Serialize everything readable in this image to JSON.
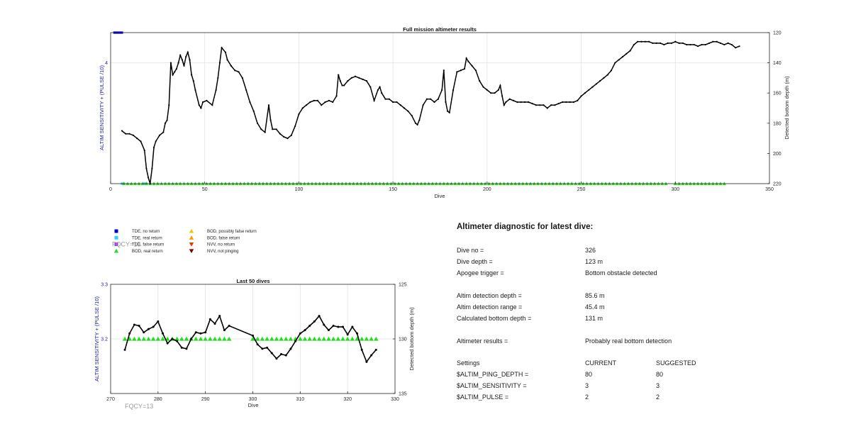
{
  "chart_data": [
    {
      "type": "line",
      "title": "Full mission altimeter results",
      "xlabel": "Dive",
      "ylabel_left": "ALTIM SENSITIVITY + (PULSE /10)",
      "ylabel_right": "Detected bottom depth (m)",
      "xlim": [
        0,
        350
      ],
      "x_ticks": [
        "0",
        "50",
        "100",
        "150",
        "200",
        "250",
        "300",
        "350"
      ],
      "left_ylim": [
        0,
        5
      ],
      "left_ticks": [
        "4"
      ],
      "right_ylim": [
        120,
        220
      ],
      "right_reversed": true,
      "right_ticks": [
        "120",
        "140",
        "160",
        "180",
        "200",
        "220"
      ],
      "grid": true,
      "depth_series": {
        "name": "Detected bottom depth",
        "points": [
          [
            6,
            185
          ],
          [
            8,
            187
          ],
          [
            10,
            187
          ],
          [
            12,
            188
          ],
          [
            14,
            190
          ],
          [
            16,
            192
          ],
          [
            18,
            198
          ],
          [
            19,
            210
          ],
          [
            20,
            216
          ],
          [
            21,
            220
          ],
          [
            22,
            210
          ],
          [
            23,
            196
          ],
          [
            24,
            192
          ],
          [
            26,
            188
          ],
          [
            28,
            186
          ],
          [
            29,
            180
          ],
          [
            30,
            178
          ],
          [
            31,
            168
          ],
          [
            32,
            140
          ],
          [
            33,
            148
          ],
          [
            34,
            146
          ],
          [
            35,
            144
          ],
          [
            36,
            140
          ],
          [
            37,
            135
          ],
          [
            38,
            138
          ],
          [
            39,
            142
          ],
          [
            40,
            136
          ],
          [
            41,
            133
          ],
          [
            42,
            138
          ],
          [
            43,
            148
          ],
          [
            44,
            152
          ],
          [
            45,
            158
          ],
          [
            47,
            168
          ],
          [
            48,
            170
          ],
          [
            49,
            166
          ],
          [
            51,
            165
          ],
          [
            54,
            168
          ],
          [
            56,
            158
          ],
          [
            57,
            150
          ],
          [
            58,
            140
          ],
          [
            59,
            130
          ],
          [
            61,
            133
          ],
          [
            62,
            138
          ],
          [
            64,
            142
          ],
          [
            66,
            145
          ],
          [
            68,
            146
          ],
          [
            70,
            150
          ],
          [
            72,
            158
          ],
          [
            74,
            166
          ],
          [
            76,
            172
          ],
          [
            78,
            180
          ],
          [
            80,
            184
          ],
          [
            82,
            186
          ],
          [
            84,
            168
          ],
          [
            85,
            178
          ],
          [
            86,
            184
          ],
          [
            88,
            184
          ],
          [
            90,
            187
          ],
          [
            92,
            189
          ],
          [
            94,
            190
          ],
          [
            96,
            188
          ],
          [
            98,
            182
          ],
          [
            100,
            174
          ],
          [
            102,
            170
          ],
          [
            104,
            168
          ],
          [
            106,
            166
          ],
          [
            108,
            165
          ],
          [
            110,
            165
          ],
          [
            112,
            168
          ],
          [
            114,
            166
          ],
          [
            116,
            165
          ],
          [
            118,
            166
          ],
          [
            120,
            162
          ],
          [
            121,
            148
          ],
          [
            122,
            152
          ],
          [
            123,
            155
          ],
          [
            124,
            155
          ],
          [
            126,
            152
          ],
          [
            128,
            150
          ],
          [
            130,
            149
          ],
          [
            132,
            150
          ],
          [
            134,
            151
          ],
          [
            136,
            152
          ],
          [
            138,
            156
          ],
          [
            140,
            165
          ],
          [
            142,
            158
          ],
          [
            143,
            156
          ],
          [
            144,
            160
          ],
          [
            146,
            164
          ],
          [
            148,
            164
          ],
          [
            150,
            166
          ],
          [
            152,
            166
          ],
          [
            154,
            168
          ],
          [
            156,
            170
          ],
          [
            158,
            172
          ],
          [
            160,
            175
          ],
          [
            162,
            180
          ],
          [
            163,
            181
          ],
          [
            164,
            178
          ],
          [
            166,
            168
          ],
          [
            168,
            164
          ],
          [
            170,
            164
          ],
          [
            172,
            166
          ],
          [
            174,
            164
          ],
          [
            176,
            158
          ],
          [
            177,
            145
          ],
          [
            178,
            166
          ],
          [
            179,
            172
          ],
          [
            180,
            173
          ],
          [
            182,
            158
          ],
          [
            184,
            146
          ],
          [
            186,
            145
          ],
          [
            188,
            144
          ],
          [
            189,
            137
          ],
          [
            190,
            139
          ],
          [
            192,
            142
          ],
          [
            194,
            145
          ],
          [
            196,
            152
          ],
          [
            198,
            156
          ],
          [
            200,
            158
          ],
          [
            202,
            160
          ],
          [
            204,
            160
          ],
          [
            206,
            158
          ],
          [
            207,
            155
          ],
          [
            208,
            162
          ],
          [
            209,
            168
          ],
          [
            210,
            166
          ],
          [
            212,
            164
          ],
          [
            214,
            165
          ],
          [
            216,
            166
          ],
          [
            218,
            166
          ],
          [
            220,
            166
          ],
          [
            222,
            166
          ],
          [
            224,
            167
          ],
          [
            226,
            168
          ],
          [
            228,
            168
          ],
          [
            230,
            168
          ],
          [
            232,
            170
          ],
          [
            234,
            168
          ],
          [
            236,
            168
          ],
          [
            238,
            167
          ],
          [
            240,
            166
          ],
          [
            242,
            166
          ],
          [
            244,
            166
          ],
          [
            246,
            166
          ],
          [
            248,
            165
          ],
          [
            250,
            162
          ],
          [
            252,
            160
          ],
          [
            254,
            158
          ],
          [
            256,
            156
          ],
          [
            258,
            154
          ],
          [
            260,
            152
          ],
          [
            262,
            150
          ],
          [
            264,
            148
          ],
          [
            266,
            145
          ],
          [
            268,
            140
          ],
          [
            270,
            138
          ],
          [
            272,
            136
          ],
          [
            274,
            134
          ],
          [
            276,
            132
          ],
          [
            278,
            128
          ],
          [
            280,
            126
          ],
          [
            282,
            126
          ],
          [
            284,
            126
          ],
          [
            286,
            126
          ],
          [
            288,
            127
          ],
          [
            290,
            127
          ],
          [
            292,
            127
          ],
          [
            294,
            128
          ],
          [
            296,
            127
          ],
          [
            298,
            127
          ],
          [
            300,
            126
          ],
          [
            302,
            127
          ],
          [
            304,
            127
          ],
          [
            306,
            128
          ],
          [
            308,
            128
          ],
          [
            310,
            128
          ],
          [
            312,
            129
          ],
          [
            314,
            128
          ],
          [
            316,
            128
          ],
          [
            318,
            127
          ],
          [
            320,
            126
          ],
          [
            322,
            126
          ],
          [
            324,
            127
          ],
          [
            326,
            128
          ],
          [
            328,
            127
          ],
          [
            330,
            128
          ],
          [
            332,
            130
          ],
          [
            334,
            129
          ]
        ]
      },
      "marker_sets": [
        {
          "name": "TDE, no return",
          "color": "#0000cc",
          "shape": "square",
          "x": [
            2,
            3,
            4,
            5,
            6
          ],
          "level": 5
        },
        {
          "name": "TDE, real return",
          "color": "#33ccff",
          "shape": "square",
          "x": [
            6,
            7,
            18,
            19
          ],
          "level": 0
        },
        {
          "name": "BOD, real return",
          "color": "#22dd22",
          "shape": "triangle",
          "level": 0,
          "x_ranges": [
            [
              7,
              296
            ],
            [
              300,
              326
            ]
          ]
        }
      ]
    },
    {
      "type": "line",
      "title": "Last 50 dives",
      "xlabel": "Dive",
      "ylabel_left": "ALTIM SENSITIVITY + (PULSE /10)",
      "ylabel_right": "Detected bottom depth (m)",
      "xlim": [
        270,
        330
      ],
      "x_ticks": [
        "270",
        "280",
        "290",
        "300",
        "310",
        "320",
        "330"
      ],
      "left_ylim": [
        3.1,
        3.3
      ],
      "left_ticks": [
        "3.3",
        "3.2"
      ],
      "right_ylim": [
        125,
        135
      ],
      "right_reversed": true,
      "right_ticks": [
        "125",
        "130",
        "135"
      ],
      "grid": true,
      "depth_series": {
        "name": "Detected bottom depth",
        "points": [
          [
            273,
            131
          ],
          [
            274,
            129.5
          ],
          [
            275,
            128.7
          ],
          [
            276,
            128.8
          ],
          [
            277,
            129.4
          ],
          [
            278,
            129.1
          ],
          [
            279,
            128.9
          ],
          [
            280,
            128.4
          ],
          [
            281,
            129.5
          ],
          [
            282,
            130.4
          ],
          [
            283,
            130
          ],
          [
            284,
            130.2
          ],
          [
            285,
            130.8
          ],
          [
            286,
            130.9
          ],
          [
            287,
            130
          ],
          [
            288,
            129.4
          ],
          [
            289,
            129.5
          ],
          [
            290,
            129.4
          ],
          [
            291,
            128.2
          ],
          [
            292,
            128.6
          ],
          [
            293,
            127.9
          ],
          [
            294,
            129.2
          ],
          [
            295,
            128.8
          ],
          [
            300,
            129.7
          ],
          [
            301,
            130.5
          ],
          [
            302,
            130.9
          ],
          [
            303,
            130.8
          ],
          [
            304,
            131.3
          ],
          [
            305,
            131.8
          ],
          [
            306,
            131.4
          ],
          [
            307,
            131.5
          ],
          [
            308,
            130.9
          ],
          [
            309,
            130.2
          ],
          [
            310,
            129.5
          ],
          [
            311,
            129.2
          ],
          [
            312,
            128.8
          ],
          [
            313,
            128.4
          ],
          [
            314,
            127.9
          ],
          [
            315,
            128.7
          ],
          [
            316,
            129.2
          ],
          [
            317,
            128.8
          ],
          [
            318,
            128.9
          ],
          [
            319,
            128.9
          ],
          [
            320,
            129.6
          ],
          [
            321,
            128.9
          ],
          [
            322,
            129.5
          ],
          [
            323,
            131
          ],
          [
            324,
            132.1
          ],
          [
            325,
            131.5
          ],
          [
            326,
            131
          ]
        ]
      },
      "marker_sets": [
        {
          "name": "BOD, real return",
          "color": "#22dd22",
          "shape": "triangle",
          "level": 3.2,
          "x_ranges": [
            [
              273,
              295
            ],
            [
              300,
              326
            ]
          ]
        }
      ],
      "annotation": "FQCY=13"
    }
  ],
  "legend": {
    "col1": [
      {
        "label": "TDE, no return",
        "color": "#0000cc",
        "shape": "square"
      },
      {
        "label": "TDE, real return",
        "color": "#33ccff",
        "shape": "square"
      },
      {
        "label": "TDE, false return",
        "color": "#9933ff",
        "shape": "square"
      },
      {
        "label": "BOD, real return",
        "color": "#22dd22",
        "shape": "triangle-up"
      }
    ],
    "col2": [
      {
        "label": "BOD, possibly false return",
        "color": "#f5c400",
        "shape": "triangle-up"
      },
      {
        "label": "BOD, false return",
        "color": "#ff9900",
        "shape": "triangle-up"
      },
      {
        "label": "NVV, no return",
        "color": "#e03a00",
        "shape": "triangle-down"
      },
      {
        "label": "NVV, not pinging",
        "color": "#7a0000",
        "shape": "triangle-down"
      }
    ],
    "overlap_text": "FQCY=13"
  },
  "diagnostic": {
    "heading": "Altimeter diagnostic for latest dive:",
    "rows": [
      {
        "label": "Dive no =",
        "value": "326"
      },
      {
        "label": "Dive depth =",
        "value": "123 m"
      },
      {
        "label": "Apogee trigger =",
        "value": "Bottom obstacle detected"
      },
      {
        "label": "Altim detection depth =",
        "value": "85.6 m"
      },
      {
        "label": "Altim detection range =",
        "value": "45.4 m"
      },
      {
        "label": "Calculated bottom depth =",
        "value": "131 m"
      },
      {
        "label": "Altimeter results =",
        "value": "Probably real bottom detection"
      }
    ],
    "settings_header": {
      "label": "Settings",
      "current": "CURRENT",
      "suggested": "SUGGESTED"
    },
    "settings": [
      {
        "label": "$ALTIM_PING_DEPTH =",
        "current": "80",
        "suggested": "80"
      },
      {
        "label": "$ALTIM_SENSITIVITY =",
        "current": "3",
        "suggested": "3"
      },
      {
        "label": "$ALTIM_PULSE =",
        "current": "2",
        "suggested": "2"
      }
    ]
  }
}
